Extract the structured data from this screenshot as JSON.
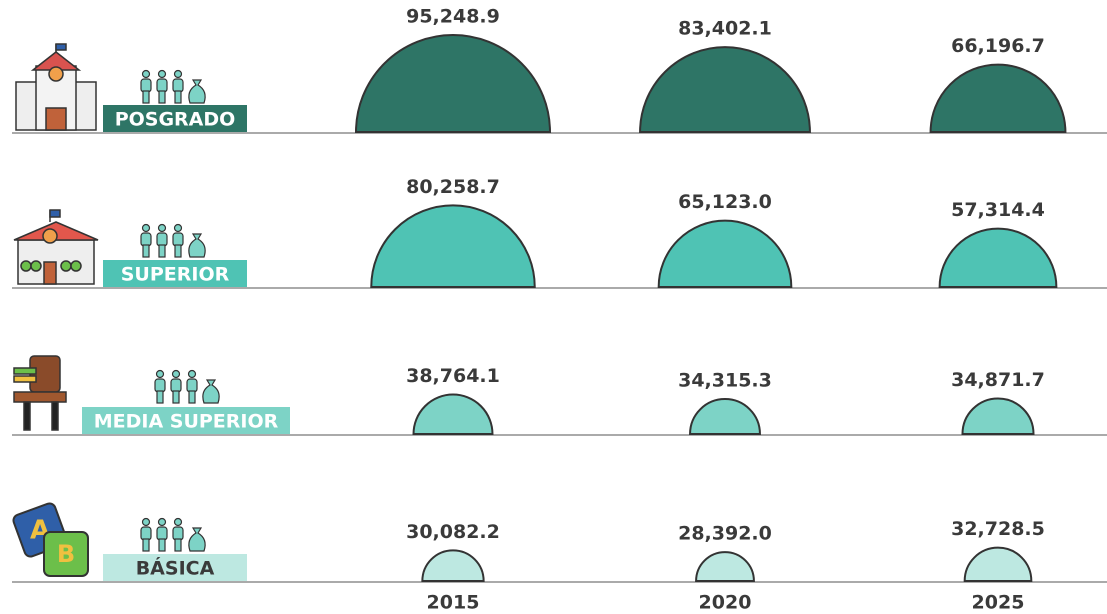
{
  "chart_data": {
    "type": "semicircle",
    "categories": [
      "2015",
      "2020",
      "2025"
    ],
    "series": [
      {
        "name": "POSGRADO",
        "color": "#2e7566",
        "values": [
          95248.9,
          83402.1,
          66196.7
        ],
        "value_labels": [
          "95,248.9",
          "83,402.1",
          "66,196.7"
        ]
      },
      {
        "name": "SUPERIOR",
        "color": "#4fc3b4",
        "values": [
          80258.7,
          65123.0,
          57314.4
        ],
        "value_labels": [
          "80,258.7",
          "65,123.0",
          "57,314.4"
        ]
      },
      {
        "name": "MEDIA SUPERIOR",
        "color": "#7dd3c6",
        "values": [
          38764.1,
          34315.3,
          34871.7
        ],
        "value_labels": [
          "38,764.1",
          "34,315.3",
          "34,871.7"
        ]
      },
      {
        "name": "BÁSICA",
        "color": "#bde8e1",
        "values": [
          30082.2,
          28392.0,
          32728.5
        ],
        "value_labels": [
          "30,082.2",
          "28,392.0",
          "32,728.5"
        ]
      }
    ]
  }
}
